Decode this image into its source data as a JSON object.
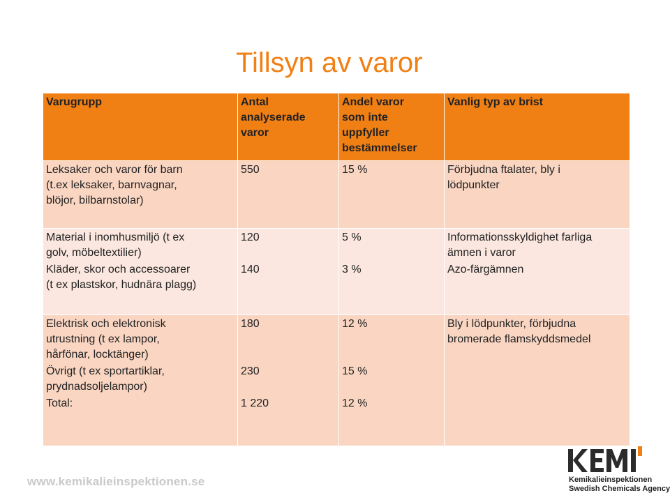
{
  "title": "Tillsyn av varor",
  "table": {
    "headers": [
      "Varugrupp",
      "Antal analyserade varor",
      "Andel varor som inte uppfyller bestämmelser",
      "Vanlig typ av brist"
    ],
    "header_lines": {
      "col2": [
        "Antal",
        "analyserade",
        "varor"
      ],
      "col3": [
        "Andel varor",
        "som inte",
        "uppfyller",
        "bestämmelser"
      ]
    },
    "row1": {
      "group_lines": [
        "Leksaker och varor för barn",
        "(t.ex leksaker, barnvagnar,",
        "blöjor, bilbarnstolar)"
      ],
      "count": "550",
      "share": "15 %",
      "defect_lines": [
        "Förbjudna ftalater, bly i",
        "lödpunkter"
      ]
    },
    "row2": {
      "a_group_lines": [
        "Material i inomhusmiljö (t ex",
        "golv, möbeltextilier)"
      ],
      "a_count": "120",
      "a_share": "5 %",
      "a_defect_lines": [
        "Informationsskyldighet farliga",
        "ämnen i varor"
      ],
      "b_group_lines": [
        "Kläder, skor och accessoarer",
        "(t ex plastskor, hudnära plagg)"
      ],
      "b_count": "140",
      "b_share": "3 %",
      "b_defect": "Azo-färgämnen"
    },
    "row3": {
      "a_group_lines": [
        "Elektrisk och elektronisk",
        "utrustning (t ex lampor,",
        "hårfönar, locktänger)"
      ],
      "a_count": "180",
      "a_share": "12 %",
      "a_defect_lines": [
        "Bly i lödpunkter, förbjudna",
        "bromerade flamskyddsmedel"
      ],
      "b_group_lines": [
        "Övrigt (t ex sportartiklar,",
        "prydnadsoljelampor)"
      ],
      "b_count": "230",
      "b_share": "15 %",
      "total_label": "Total:",
      "total_count": "1 220",
      "total_share": "12 %"
    }
  },
  "footer": {
    "url": "www.kemikalieinspektionen.se",
    "logo_word": "KEMI",
    "logo_line1": "Kemikalieinspektionen",
    "logo_line2": "Swedish Chemicals Agency"
  },
  "colors": {
    "accent": "#f07f14",
    "row_dark": "#f9d5c2",
    "row_light": "#fbe7df"
  }
}
